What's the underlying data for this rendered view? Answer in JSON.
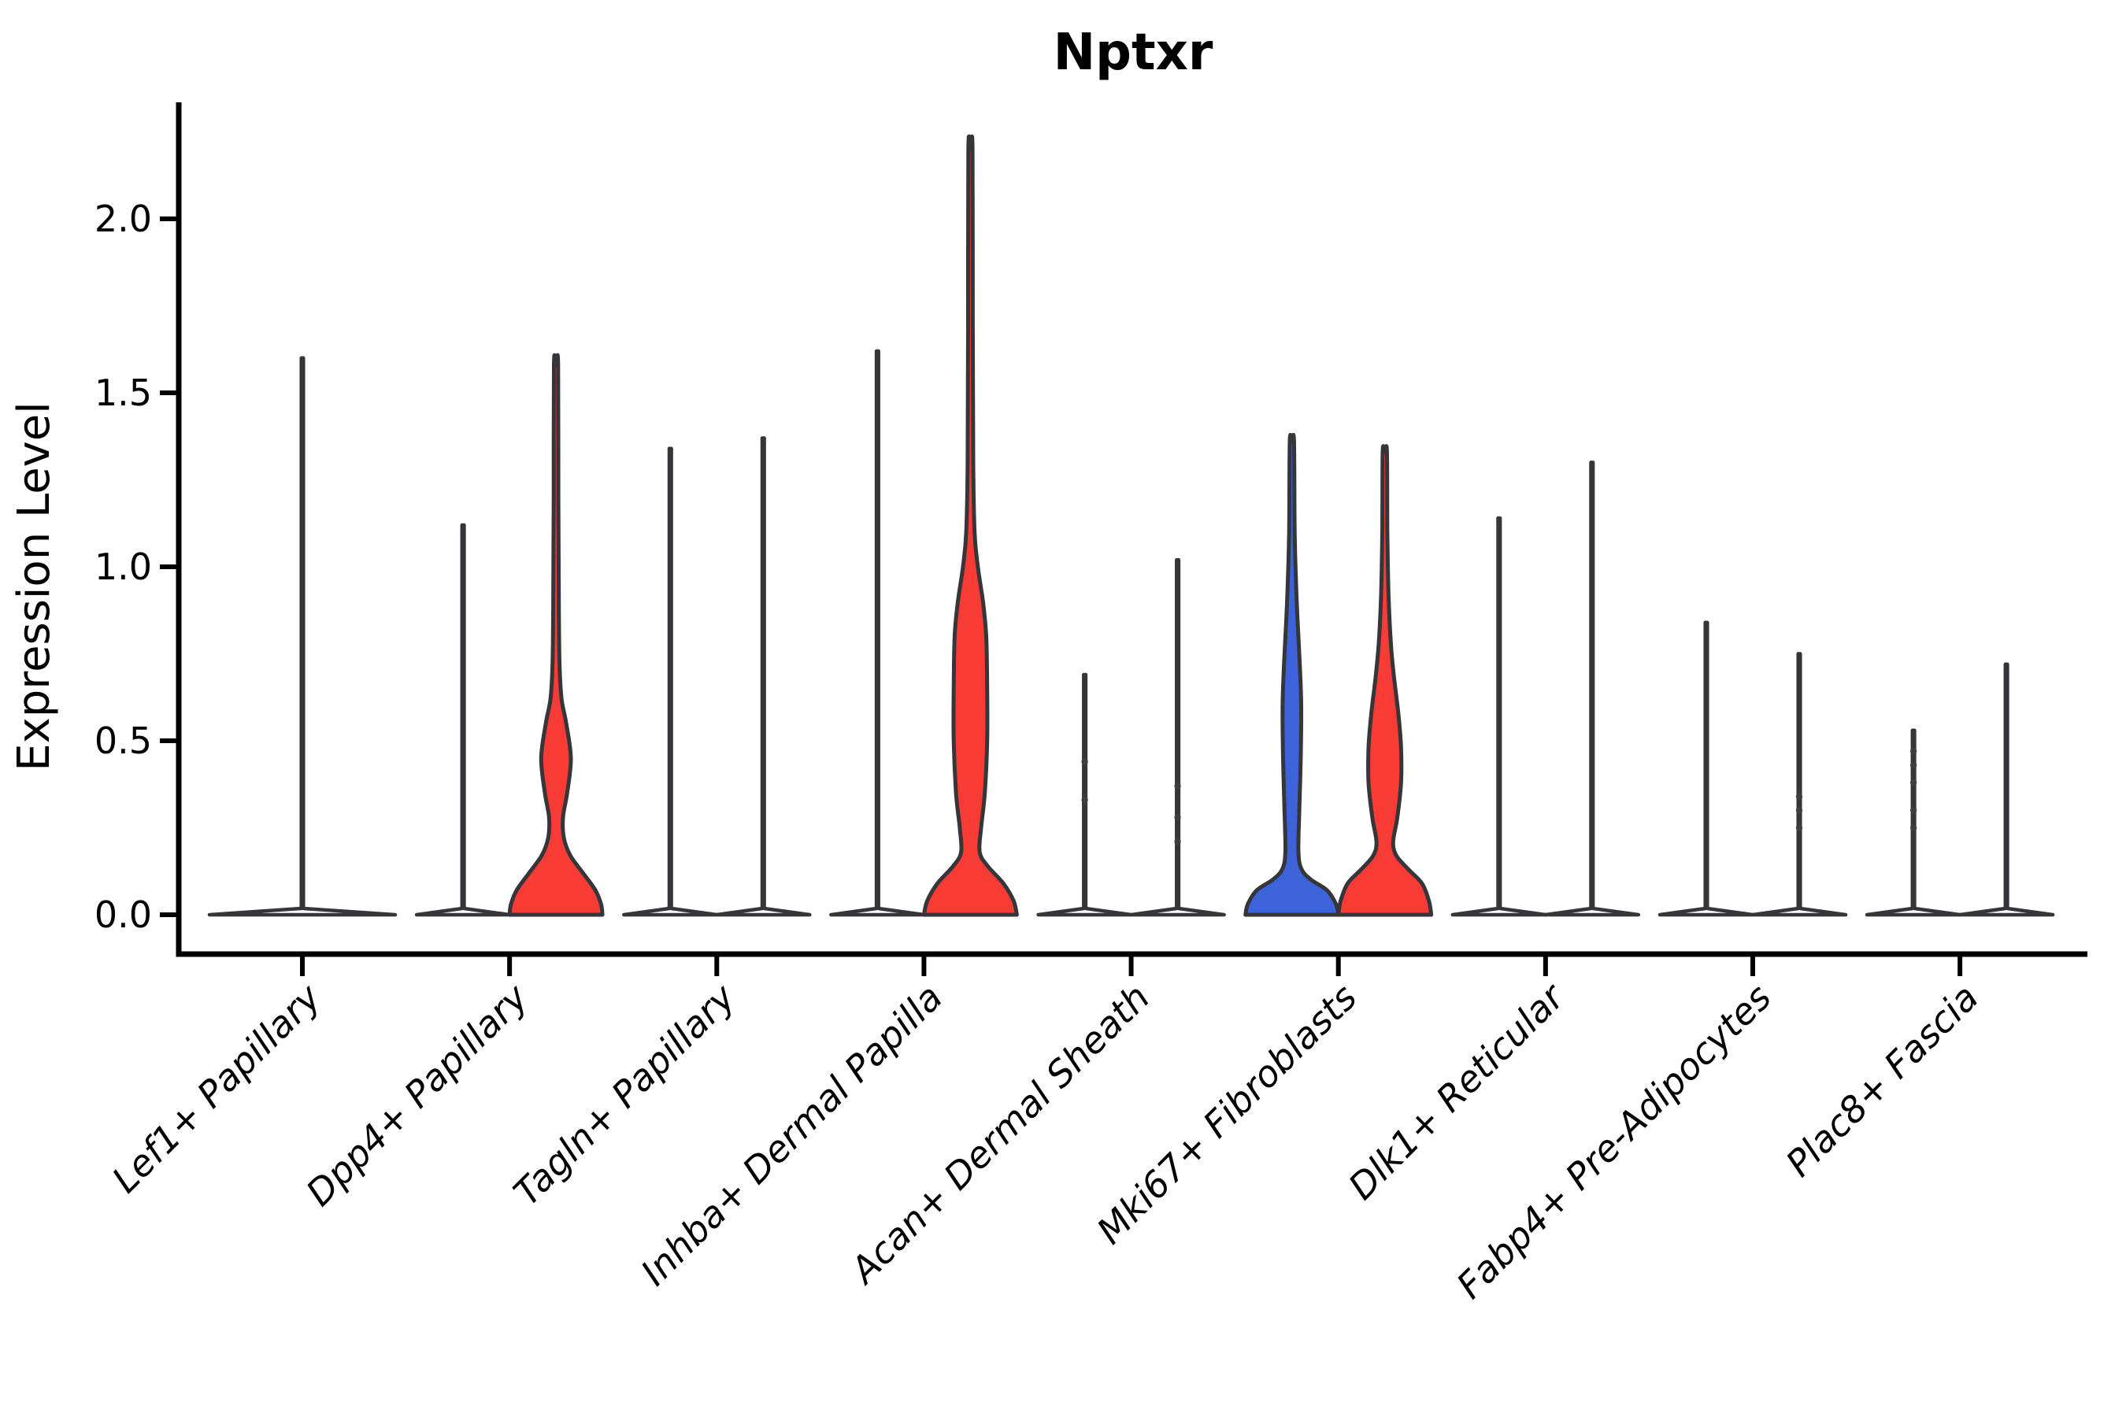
{
  "title": "Nptxr",
  "chart_data": {
    "type": "violin",
    "title": "Nptxr",
    "ylabel": "Expression Level",
    "ylim": [
      -0.11,
      2.33
    ],
    "yticks": [
      0.0,
      0.5,
      1.0,
      1.5,
      2.0
    ],
    "ytick_labels": [
      "0.0",
      "0.5",
      "1.0",
      "1.5",
      "2.0"
    ],
    "grid": false,
    "legend": "none",
    "categories": [
      "Lef1+ Papillary",
      "Dpp4+ Papillary",
      "Tagln+ Papillary",
      "Inhba+ Dermal Papilla",
      "Acan+ Dermal Sheath",
      "Mki67+ Fibroblasts",
      "Dlk1+ Reticular",
      "Fabp4+ Pre-Adipocytes",
      "Plac8+ Fascia"
    ],
    "split_colors": {
      "blue": "#3D63DB",
      "red": "#F93B35"
    },
    "outline_color": "#35353A",
    "axis_color": "#000000",
    "dot_color": "#3F3F44",
    "violins": [
      {
        "category": "Lef1+ Papillary",
        "side": "center",
        "color": "none",
        "max_expression": 1.6,
        "width_scale": 2,
        "profile": [
          [
            0,
            1
          ],
          [
            0.018,
            0.011
          ],
          [
            1.6,
            0.011
          ]
        ],
        "dots": []
      },
      {
        "category": "Dpp4+ Papillary",
        "side": "left",
        "color": "none",
        "max_expression": 1.12,
        "width_scale": 1,
        "profile": [
          [
            0,
            1
          ],
          [
            0.018,
            0.022
          ],
          [
            1.12,
            0.022
          ]
        ],
        "dots": []
      },
      {
        "category": "Dpp4+ Papillary",
        "side": "right",
        "color": "red",
        "max_expression": 1.58,
        "width_scale": 1,
        "profile": [
          [
            0,
            1
          ],
          [
            0.03,
            0.97
          ],
          [
            0.07,
            0.85
          ],
          [
            0.12,
            0.58
          ],
          [
            0.17,
            0.31
          ],
          [
            0.22,
            0.17
          ],
          [
            0.28,
            0.15
          ],
          [
            0.35,
            0.24
          ],
          [
            0.45,
            0.32
          ],
          [
            0.55,
            0.22
          ],
          [
            0.62,
            0.12
          ],
          [
            0.72,
            0.075
          ],
          [
            0.9,
            0.06
          ],
          [
            1.2,
            0.05
          ],
          [
            1.58,
            0.045
          ]
        ],
        "dots": []
      },
      {
        "category": "Tagln+ Papillary",
        "side": "left",
        "color": "none",
        "max_expression": 1.34,
        "width_scale": 1,
        "profile": [
          [
            0,
            1
          ],
          [
            0.018,
            0.022
          ],
          [
            1.34,
            0.022
          ]
        ],
        "dots": []
      },
      {
        "category": "Tagln+ Papillary",
        "side": "right",
        "color": "none",
        "max_expression": 1.37,
        "width_scale": 1,
        "profile": [
          [
            0,
            1
          ],
          [
            0.018,
            0.022
          ],
          [
            1.37,
            0.022
          ]
        ],
        "dots": []
      },
      {
        "category": "Inhba+ Dermal Papilla",
        "side": "left",
        "color": "none",
        "max_expression": 1.62,
        "width_scale": 1,
        "profile": [
          [
            0,
            1
          ],
          [
            0.018,
            0.022
          ],
          [
            1.62,
            0.022
          ]
        ],
        "dots": []
      },
      {
        "category": "Inhba+ Dermal Papilla",
        "side": "right",
        "color": "red",
        "max_expression": 2.2,
        "width_scale": 1,
        "profile": [
          [
            0,
            1
          ],
          [
            0.04,
            0.93
          ],
          [
            0.09,
            0.71
          ],
          [
            0.14,
            0.37
          ],
          [
            0.18,
            0.2
          ],
          [
            0.25,
            0.23
          ],
          [
            0.35,
            0.31
          ],
          [
            0.5,
            0.36
          ],
          [
            0.65,
            0.36
          ],
          [
            0.8,
            0.34
          ],
          [
            0.9,
            0.27
          ],
          [
            1.0,
            0.16
          ],
          [
            1.1,
            0.09
          ],
          [
            1.3,
            0.06
          ],
          [
            1.7,
            0.05
          ],
          [
            2.2,
            0.045
          ]
        ],
        "dots": []
      },
      {
        "category": "Acan+ Dermal Sheath",
        "side": "left",
        "color": "none",
        "max_expression": 0.69,
        "width_scale": 1,
        "profile": [
          [
            0,
            1
          ],
          [
            0.018,
            0.022
          ],
          [
            0.69,
            0.022
          ]
        ],
        "dots": [
          0.44,
          0.33
        ]
      },
      {
        "category": "Acan+ Dermal Sheath",
        "side": "right",
        "color": "none",
        "max_expression": 1.02,
        "width_scale": 1,
        "profile": [
          [
            0,
            1
          ],
          [
            0.018,
            0.022
          ],
          [
            1.02,
            0.022
          ]
        ],
        "dots": [
          0.37,
          0.28,
          0.21
        ]
      },
      {
        "category": "Mki67+ Fibroblasts",
        "side": "left",
        "color": "blue",
        "max_expression": 1.36,
        "width_scale": 1,
        "profile": [
          [
            0,
            1
          ],
          [
            0.03,
            0.95
          ],
          [
            0.07,
            0.76
          ],
          [
            0.1,
            0.42
          ],
          [
            0.13,
            0.21
          ],
          [
            0.18,
            0.14
          ],
          [
            0.3,
            0.16
          ],
          [
            0.45,
            0.19
          ],
          [
            0.6,
            0.2
          ],
          [
            0.72,
            0.17
          ],
          [
            0.85,
            0.12
          ],
          [
            0.95,
            0.09
          ],
          [
            1.1,
            0.06
          ],
          [
            1.36,
            0.045
          ]
        ],
        "dots": []
      },
      {
        "category": "Mki67+ Fibroblasts",
        "side": "right",
        "color": "red",
        "max_expression": 1.33,
        "width_scale": 1,
        "profile": [
          [
            0,
            1
          ],
          [
            0.04,
            0.95
          ],
          [
            0.09,
            0.8
          ],
          [
            0.13,
            0.51
          ],
          [
            0.17,
            0.25
          ],
          [
            0.21,
            0.18
          ],
          [
            0.28,
            0.27
          ],
          [
            0.38,
            0.35
          ],
          [
            0.48,
            0.35
          ],
          [
            0.58,
            0.29
          ],
          [
            0.68,
            0.2
          ],
          [
            0.78,
            0.13
          ],
          [
            0.92,
            0.08
          ],
          [
            1.1,
            0.055
          ],
          [
            1.33,
            0.045
          ]
        ],
        "dots": []
      },
      {
        "category": "Dlk1+ Reticular",
        "side": "left",
        "color": "none",
        "max_expression": 1.14,
        "width_scale": 1,
        "profile": [
          [
            0,
            1
          ],
          [
            0.018,
            0.022
          ],
          [
            1.14,
            0.022
          ]
        ],
        "dots": []
      },
      {
        "category": "Dlk1+ Reticular",
        "side": "right",
        "color": "none",
        "max_expression": 1.3,
        "width_scale": 1,
        "profile": [
          [
            0,
            1
          ],
          [
            0.018,
            0.022
          ],
          [
            1.3,
            0.022
          ]
        ],
        "dots": []
      },
      {
        "category": "Fabp4+ Pre-Adipocytes",
        "side": "left",
        "color": "none",
        "max_expression": 0.84,
        "width_scale": 1,
        "profile": [
          [
            0,
            1
          ],
          [
            0.018,
            0.022
          ],
          [
            0.84,
            0.022
          ]
        ],
        "dots": []
      },
      {
        "category": "Fabp4+ Pre-Adipocytes",
        "side": "right",
        "color": "none",
        "max_expression": 0.75,
        "width_scale": 1,
        "profile": [
          [
            0,
            1
          ],
          [
            0.018,
            0.022
          ],
          [
            0.75,
            0.022
          ]
        ],
        "dots": [
          0.34,
          0.3,
          0.25
        ]
      },
      {
        "category": "Plac8+ Fascia",
        "side": "left",
        "color": "none",
        "max_expression": 0.53,
        "width_scale": 1,
        "profile": [
          [
            0,
            1
          ],
          [
            0.018,
            0.022
          ],
          [
            0.53,
            0.022
          ]
        ],
        "dots": [
          0.47,
          0.43,
          0.38,
          0.3,
          0.25
        ]
      },
      {
        "category": "Plac8+ Fascia",
        "side": "right",
        "color": "none",
        "max_expression": 0.72,
        "width_scale": 1,
        "profile": [
          [
            0,
            1
          ],
          [
            0.018,
            0.022
          ],
          [
            0.72,
            0.022
          ]
        ],
        "dots": []
      }
    ]
  }
}
